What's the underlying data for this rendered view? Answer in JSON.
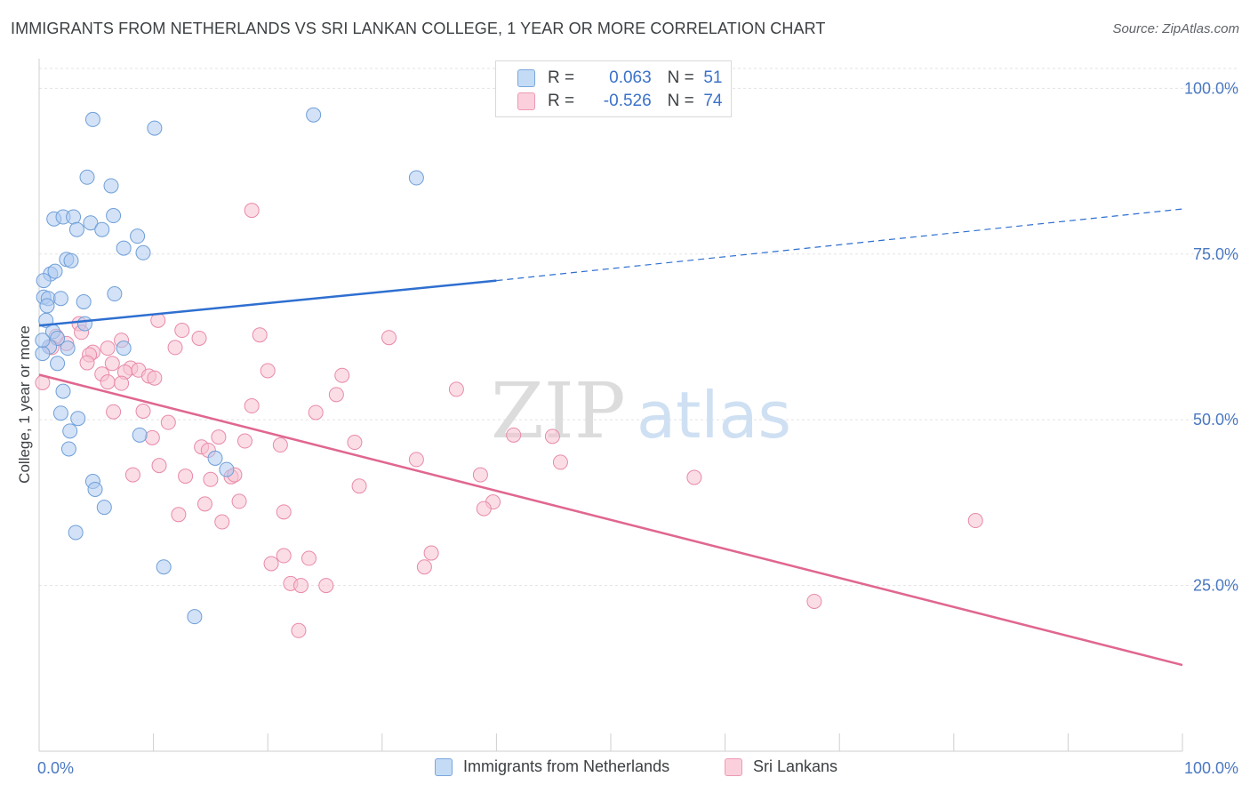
{
  "title": "IMMIGRANTS FROM NETHERLANDS VS SRI LANKAN COLLEGE, 1 YEAR OR MORE CORRELATION CHART",
  "source": "Source: ZipAtlas.com",
  "legend": {
    "rows": [
      {
        "r_label": "R =",
        "r_value": "0.063",
        "n_label": "N =",
        "n_value": "51"
      },
      {
        "r_label": "R =",
        "r_value": "-0.526",
        "n_label": "N =",
        "n_value": "74"
      }
    ]
  },
  "bottom_legend": {
    "series1": "Immigrants from Netherlands",
    "series2": "Sri Lankans"
  },
  "watermark": {
    "zip": "ZIP",
    "atlas": "atlas"
  },
  "colors": {
    "blue_fill": "#aecbf0",
    "blue_stroke": "#6f9fd8",
    "blue_line": "#2e6fd0",
    "pink_fill": "#f8c1d1",
    "pink_stroke": "#e88aa8",
    "pink_line": "#e0678f",
    "tick_text": "#4a78c2",
    "grid": "#e3e3e3"
  },
  "chart_data": {
    "type": "scatter",
    "title": "IMMIGRANTS FROM NETHERLANDS VS SRI LANKAN COLLEGE, 1 YEAR OR MORE CORRELATION CHART",
    "xlabel": "",
    "ylabel": "College, 1 year or more",
    "xlim": [
      0,
      100
    ],
    "ylim": [
      0,
      103
    ],
    "x_tick_labels": [
      {
        "value": 0,
        "label": "0.0%"
      },
      {
        "value": 100,
        "label": "100.0%"
      }
    ],
    "y_tick_labels": [
      {
        "value": 25,
        "label": "25.0%"
      },
      {
        "value": 50,
        "label": "50.0%"
      },
      {
        "value": 75,
        "label": "75.0%"
      },
      {
        "value": 100,
        "label": "100.0%"
      }
    ],
    "series": [
      {
        "name": "Immigrants from Netherlands",
        "color": "#aecbf0",
        "R": 0.063,
        "N": 51,
        "trend": {
          "x0": 0,
          "y0": 64.2,
          "x1": 40,
          "y1": 71.0,
          "dash_to_x": 100,
          "dash_to_y": 81.8
        },
        "points": [
          [
            4.7,
            95.3
          ],
          [
            10.1,
            94.0
          ],
          [
            24.0,
            96.0
          ],
          [
            4.2,
            86.6
          ],
          [
            6.3,
            85.3
          ],
          [
            33.0,
            86.5
          ],
          [
            1.3,
            80.3
          ],
          [
            2.1,
            80.6
          ],
          [
            3.0,
            80.6
          ],
          [
            3.3,
            78.7
          ],
          [
            4.5,
            79.7
          ],
          [
            5.5,
            78.7
          ],
          [
            6.5,
            80.8
          ],
          [
            8.6,
            77.7
          ],
          [
            7.4,
            75.9
          ],
          [
            9.1,
            75.2
          ],
          [
            2.4,
            74.2
          ],
          [
            2.8,
            74.0
          ],
          [
            1.0,
            72.0
          ],
          [
            1.4,
            72.4
          ],
          [
            0.4,
            71.0
          ],
          [
            6.6,
            69.0
          ],
          [
            0.4,
            68.5
          ],
          [
            0.8,
            68.3
          ],
          [
            1.9,
            68.3
          ],
          [
            0.7,
            67.2
          ],
          [
            3.9,
            67.8
          ],
          [
            0.6,
            65.0
          ],
          [
            4.0,
            64.5
          ],
          [
            1.2,
            63.3
          ],
          [
            1.6,
            62.3
          ],
          [
            0.9,
            61.0
          ],
          [
            2.5,
            60.8
          ],
          [
            7.4,
            60.8
          ],
          [
            0.3,
            60.0
          ],
          [
            1.6,
            58.5
          ],
          [
            2.1,
            54.3
          ],
          [
            1.9,
            51.0
          ],
          [
            3.4,
            50.2
          ],
          [
            8.8,
            47.7
          ],
          [
            2.7,
            48.3
          ],
          [
            2.6,
            45.6
          ],
          [
            15.4,
            44.2
          ],
          [
            16.4,
            42.5
          ],
          [
            4.7,
            40.7
          ],
          [
            4.9,
            39.5
          ],
          [
            5.7,
            36.8
          ],
          [
            3.2,
            33.0
          ],
          [
            10.9,
            27.8
          ],
          [
            13.6,
            20.3
          ],
          [
            0.3,
            62.0
          ]
        ]
      },
      {
        "name": "Sri Lankans",
        "color": "#f8c1d1",
        "R": -0.526,
        "N": 74,
        "trend": {
          "x0": 0,
          "y0": 56.8,
          "x1": 100,
          "y1": 13.0
        },
        "points": [
          [
            18.6,
            81.6
          ],
          [
            10.4,
            65.0
          ],
          [
            3.5,
            64.5
          ],
          [
            3.7,
            63.2
          ],
          [
            7.2,
            62.0
          ],
          [
            12.5,
            63.5
          ],
          [
            14.0,
            62.3
          ],
          [
            19.3,
            62.8
          ],
          [
            30.6,
            62.4
          ],
          [
            1.5,
            62.6
          ],
          [
            1.1,
            60.9
          ],
          [
            2.4,
            61.5
          ],
          [
            4.7,
            60.2
          ],
          [
            4.4,
            59.8
          ],
          [
            6.0,
            60.8
          ],
          [
            11.9,
            60.9
          ],
          [
            4.2,
            58.6
          ],
          [
            6.4,
            58.5
          ],
          [
            8.0,
            57.8
          ],
          [
            8.7,
            57.5
          ],
          [
            7.5,
            57.2
          ],
          [
            5.5,
            56.9
          ],
          [
            9.6,
            56.6
          ],
          [
            10.1,
            56.3
          ],
          [
            20.0,
            57.4
          ],
          [
            26.5,
            56.7
          ],
          [
            6.0,
            55.7
          ],
          [
            7.2,
            55.5
          ],
          [
            0.3,
            55.6
          ],
          [
            36.5,
            54.6
          ],
          [
            26.0,
            53.8
          ],
          [
            18.6,
            52.1
          ],
          [
            6.5,
            51.2
          ],
          [
            9.1,
            51.3
          ],
          [
            24.2,
            51.1
          ],
          [
            11.3,
            49.6
          ],
          [
            9.9,
            47.3
          ],
          [
            15.7,
            47.4
          ],
          [
            18.0,
            46.8
          ],
          [
            21.1,
            46.2
          ],
          [
            14.2,
            45.9
          ],
          [
            14.8,
            45.4
          ],
          [
            27.6,
            46.6
          ],
          [
            41.5,
            47.7
          ],
          [
            44.9,
            47.5
          ],
          [
            33.0,
            44.0
          ],
          [
            45.6,
            43.6
          ],
          [
            10.5,
            43.1
          ],
          [
            8.2,
            41.7
          ],
          [
            12.8,
            41.5
          ],
          [
            16.8,
            41.4
          ],
          [
            17.1,
            41.7
          ],
          [
            38.6,
            41.7
          ],
          [
            57.3,
            41.3
          ],
          [
            28.0,
            40.0
          ],
          [
            14.5,
            37.3
          ],
          [
            17.5,
            37.7
          ],
          [
            39.7,
            37.6
          ],
          [
            38.9,
            36.6
          ],
          [
            12.2,
            35.7
          ],
          [
            21.4,
            36.1
          ],
          [
            16.0,
            34.6
          ],
          [
            81.9,
            34.8
          ],
          [
            21.4,
            29.5
          ],
          [
            23.6,
            29.1
          ],
          [
            20.3,
            28.3
          ],
          [
            34.3,
            29.9
          ],
          [
            33.7,
            27.8
          ],
          [
            22.0,
            25.3
          ],
          [
            22.9,
            25.0
          ],
          [
            25.1,
            25.0
          ],
          [
            67.8,
            22.6
          ],
          [
            22.7,
            18.2
          ],
          [
            15.0,
            41.0
          ]
        ]
      }
    ]
  }
}
